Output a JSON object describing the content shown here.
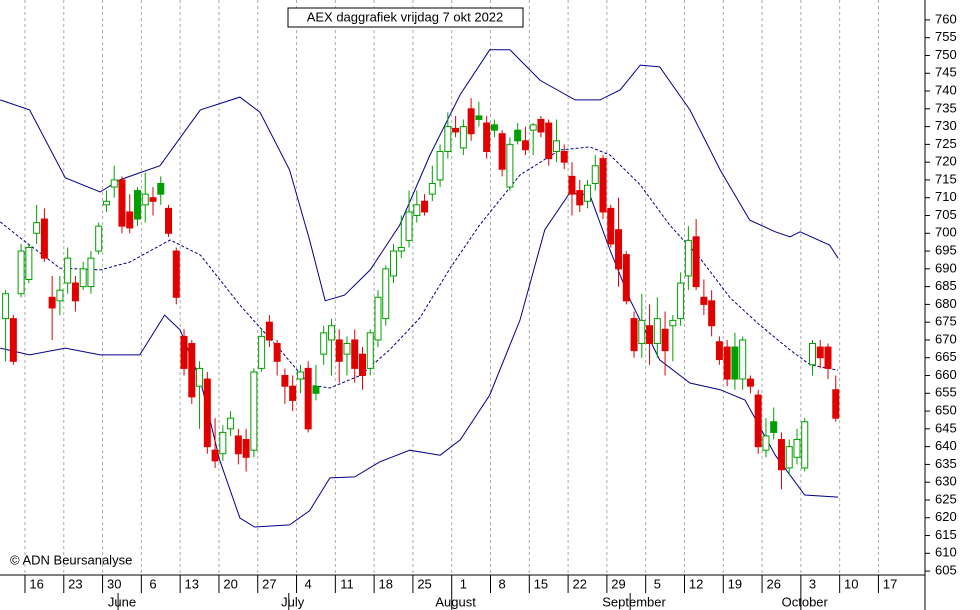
{
  "chart_data": {
    "type": "candlestick",
    "title": "AEX daggrafiek vrijdag 7 okt 2022",
    "source": "© ADN Beursanalyse",
    "up_color": "#00a000",
    "down_color": "#e00000",
    "band_color": "#00008b",
    "xlim": [
      -0.72,
      118.5
    ],
    "ylim": [
      603.9,
      765.6
    ],
    "yticks": [
      605,
      610,
      615,
      620,
      625,
      630,
      635,
      640,
      645,
      650,
      655,
      660,
      665,
      670,
      675,
      680,
      685,
      690,
      695,
      700,
      705,
      710,
      715,
      720,
      725,
      730,
      735,
      740,
      745,
      750,
      755,
      760
    ],
    "xticks": [
      {
        "value": 4,
        "label": "16"
      },
      {
        "value": 9,
        "label": "23"
      },
      {
        "value": 14,
        "label": "30"
      },
      {
        "value": 19,
        "label": "6"
      },
      {
        "value": 24,
        "label": "13"
      },
      {
        "value": 29,
        "label": "20"
      },
      {
        "value": 34,
        "label": "27"
      },
      {
        "value": 39,
        "label": "4"
      },
      {
        "value": 44,
        "label": "11"
      },
      {
        "value": 49,
        "label": "18"
      },
      {
        "value": 54,
        "label": "25"
      },
      {
        "value": 59,
        "label": "1"
      },
      {
        "value": 64,
        "label": "8"
      },
      {
        "value": 69,
        "label": "15"
      },
      {
        "value": 74,
        "label": "22"
      },
      {
        "value": 79,
        "label": "29"
      },
      {
        "value": 84,
        "label": "5"
      },
      {
        "value": 89,
        "label": "12"
      },
      {
        "value": 94,
        "label": "19"
      },
      {
        "value": 99,
        "label": "26"
      },
      {
        "value": 104,
        "label": "3"
      },
      {
        "value": 109,
        "label": "10"
      },
      {
        "value": 114,
        "label": "17"
      }
    ],
    "months": [
      {
        "value": 15,
        "label": "June"
      },
      {
        "value": 37,
        "label": "July"
      },
      {
        "value": 58,
        "label": "August"
      },
      {
        "value": 81,
        "label": "September"
      },
      {
        "value": 103,
        "label": "October"
      }
    ],
    "open": [
      676,
      676,
      683,
      687,
      700,
      704,
      682,
      681,
      686,
      686,
      685,
      685,
      695,
      708,
      713,
      715,
      706,
      712,
      708,
      710,
      714,
      707,
      695,
      671,
      669,
      657,
      659,
      639,
      638,
      645,
      643,
      642,
      639,
      662,
      675,
      669,
      660,
      657,
      659,
      662,
      657,
      666,
      670,
      670,
      666,
      670,
      666,
      662,
      670,
      676,
      688,
      695,
      698,
      705,
      709,
      711,
      715,
      723,
      729.5,
      724,
      735,
      733,
      731,
      730.5,
      728,
      713,
      729,
      726,
      729,
      732,
      731,
      723,
      723,
      716,
      712,
      709,
      714,
      721,
      707,
      701,
      694,
      676,
      669,
      674,
      669,
      673,
      674,
      676,
      688,
      699,
      682,
      681,
      669.5,
      668,
      668,
      659,
      659,
      654.5,
      639,
      647,
      642,
      634,
      637,
      634,
      663,
      668,
      668,
      656
    ],
    "high": [
      684,
      677,
      697,
      697,
      708,
      707,
      688,
      688,
      696,
      688,
      692,
      695,
      703,
      712,
      719,
      716,
      711,
      713,
      717,
      713,
      716,
      708,
      696,
      673,
      670,
      664,
      661,
      648,
      646,
      650,
      645,
      645,
      662,
      673,
      677,
      670,
      662,
      660,
      663,
      664,
      663,
      674,
      676,
      673,
      671,
      673,
      668,
      673,
      684,
      691,
      697,
      705,
      712,
      712,
      711,
      719,
      725,
      734,
      733,
      732,
      738,
      737,
      733,
      732,
      729,
      727,
      731,
      730,
      731,
      733,
      732,
      732,
      725,
      720,
      715,
      715,
      722,
      722,
      708,
      710,
      695,
      678,
      683,
      680,
      682,
      678,
      677,
      689,
      702,
      704,
      687,
      684,
      671,
      670,
      672,
      671,
      660,
      656,
      648,
      651,
      644,
      642,
      645,
      648,
      670,
      670,
      669,
      660
    ],
    "low": [
      664,
      663,
      682,
      686,
      697,
      692,
      670,
      677,
      683,
      678,
      684,
      683,
      694,
      706,
      710,
      700,
      700,
      702,
      703,
      705,
      708,
      699,
      680,
      660,
      652,
      645,
      638,
      634,
      636,
      643,
      635,
      633,
      637,
      661,
      668,
      660,
      652,
      650,
      655,
      644,
      653,
      663,
      660,
      658,
      660,
      658,
      656,
      660,
      668,
      674,
      686,
      693,
      696,
      703,
      705,
      709,
      713,
      721,
      727,
      722,
      726,
      730,
      721,
      727,
      716,
      712,
      725,
      722,
      722,
      727,
      719,
      720,
      718,
      705,
      706,
      707,
      712,
      704,
      696,
      685,
      680,
      665,
      665,
      663,
      665,
      660,
      664,
      674,
      684,
      684,
      677,
      671,
      663,
      657,
      656,
      656,
      655,
      638,
      637,
      642,
      628,
      632,
      635,
      633,
      660,
      662,
      659,
      647
    ],
    "close": [
      683,
      664,
      695,
      696,
      703,
      693,
      679,
      684,
      693,
      681,
      690,
      693,
      702,
      709,
      715,
      702,
      701.5,
      704,
      711,
      709,
      711,
      700,
      682,
      662,
      654,
      662,
      640,
      636,
      644,
      648,
      638,
      637,
      661,
      671,
      670,
      664,
      657,
      653,
      661,
      645,
      655,
      672,
      674,
      664,
      669,
      662,
      660,
      672,
      682,
      690,
      695,
      696,
      706,
      708,
      706,
      714,
      723,
      730,
      728.5,
      730,
      728,
      732,
      723,
      729,
      718,
      725,
      726,
      723.5,
      730.5,
      728.5,
      721,
      726,
      720,
      711,
      708,
      713.5,
      719,
      706,
      697,
      690,
      681,
      667,
      675.5,
      669,
      676,
      667,
      675.5,
      686,
      698,
      685,
      680,
      674,
      664.5,
      659,
      659,
      670,
      657,
      640,
      643,
      644,
      633.5,
      640,
      642,
      647,
      669,
      665,
      662,
      648
    ],
    "bands": [
      {
        "style": "solid",
        "x": [
          -0.7,
          3.1,
          7.7,
          12.2,
          14.7,
          19.9,
          25.1,
          30.2,
          32.8,
          36.6,
          39.2,
          41.2,
          43.7,
          47.0,
          50.8,
          54.7,
          58.6,
          62.4,
          65.0,
          68.9,
          73.4,
          76.6,
          79.2,
          81.8,
          84.3,
          88.2,
          92.1,
          95.9,
          99.2,
          101.1,
          102.4,
          106.2,
          107.3
        ],
        "values": [
          737.5,
          734.7,
          715.6,
          711.6,
          715,
          719,
          734.7,
          738.3,
          734,
          717.8,
          698,
          681,
          682.6,
          689.7,
          702.3,
          722,
          739,
          751.6,
          751.6,
          743,
          737.5,
          737.5,
          740.3,
          747.3,
          746.8,
          734.7,
          717.8,
          703.7,
          700.4,
          699,
          700.4,
          696.7,
          693
        ]
      },
      {
        "style": "dashed",
        "x": [
          -0.7,
          1.9,
          7.0,
          12.2,
          16.0,
          21.2,
          25.1,
          30.2,
          35.4,
          39.2,
          41.8,
          45.7,
          49.5,
          53.4,
          57.3,
          61.1,
          66.3,
          71.4,
          75.3,
          77.9,
          81.8,
          85.6,
          89.5,
          93.4,
          97.2,
          101.1,
          103.7,
          107.3
        ],
        "values": [
          703.2,
          698.7,
          690.2,
          689.7,
          691.9,
          698.1,
          693.9,
          679.8,
          667.2,
          657.3,
          656.5,
          660,
          667.2,
          676.2,
          690.2,
          702.3,
          716.4,
          723.4,
          724.3,
          722,
          713.6,
          702.3,
          693,
          681.8,
          674.2,
          667.2,
          663,
          661.5
        ]
      },
      {
        "style": "solid",
        "x": [
          -0.7,
          3.1,
          7.7,
          12.2,
          17.3,
          20.5,
          22.5,
          25.1,
          27.6,
          30.2,
          32.1,
          36.6,
          39.2,
          41.8,
          45.0,
          48.2,
          52.1,
          56.0,
          58.6,
          62.4,
          66.3,
          69.5,
          72.7,
          75.3,
          77.9,
          80.5,
          84.3,
          88.2,
          92.1,
          95.3,
          99.2,
          103.0,
          107.3
        ],
        "values": [
          667.7,
          665.8,
          667.7,
          665.8,
          665.8,
          677,
          672.8,
          658.7,
          636.2,
          619.9,
          617.4,
          618,
          622,
          631.2,
          631.5,
          635.7,
          639,
          637.6,
          641.9,
          654.5,
          675.6,
          701,
          711.3,
          710.8,
          695.3,
          681.2,
          664.4,
          657.9,
          656,
          653.1,
          637.6,
          626.4,
          625.8
        ]
      }
    ]
  }
}
